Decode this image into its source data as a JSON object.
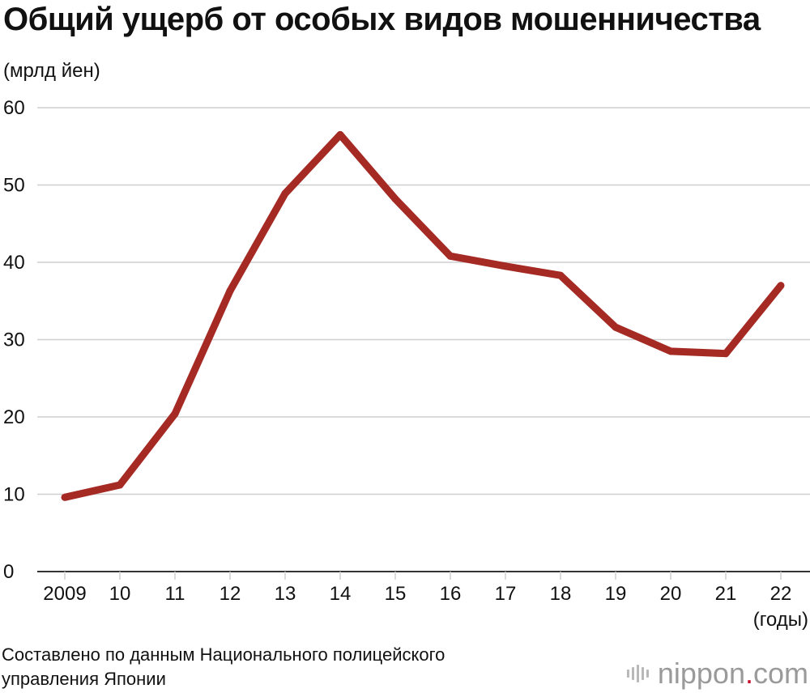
{
  "title": "Общий ущерб от особых видов мошенничества",
  "y_unit": "(мрлд йен)",
  "x_unit": "(годы)",
  "source": "Составлено по данным Национального полицейского управления Японии",
  "brand": {
    "name": "nippon",
    "dot": ".",
    "tld": "com"
  },
  "colors": {
    "line": "#a52a24",
    "grid": "#cfcfcf",
    "axis": "#333333",
    "brand_dot": "#c8102e"
  },
  "chart_data": {
    "type": "line",
    "title": "Общий ущерб от особых видов мошенничества",
    "ylabel": "(мрлд йен)",
    "xlabel": "(годы)",
    "ylim": [
      0,
      60
    ],
    "yticks": [
      0,
      10,
      20,
      30,
      40,
      50,
      60
    ],
    "grid": true,
    "categories": [
      "2009",
      "10",
      "11",
      "12",
      "13",
      "14",
      "15",
      "16",
      "17",
      "18",
      "19",
      "20",
      "21",
      "22"
    ],
    "series": [
      {
        "values": [
          9.6,
          11.2,
          20.4,
          36.3,
          48.9,
          56.5,
          48.2,
          40.8,
          39.5,
          38.3,
          31.6,
          28.5,
          28.2,
          37.0
        ]
      }
    ]
  }
}
